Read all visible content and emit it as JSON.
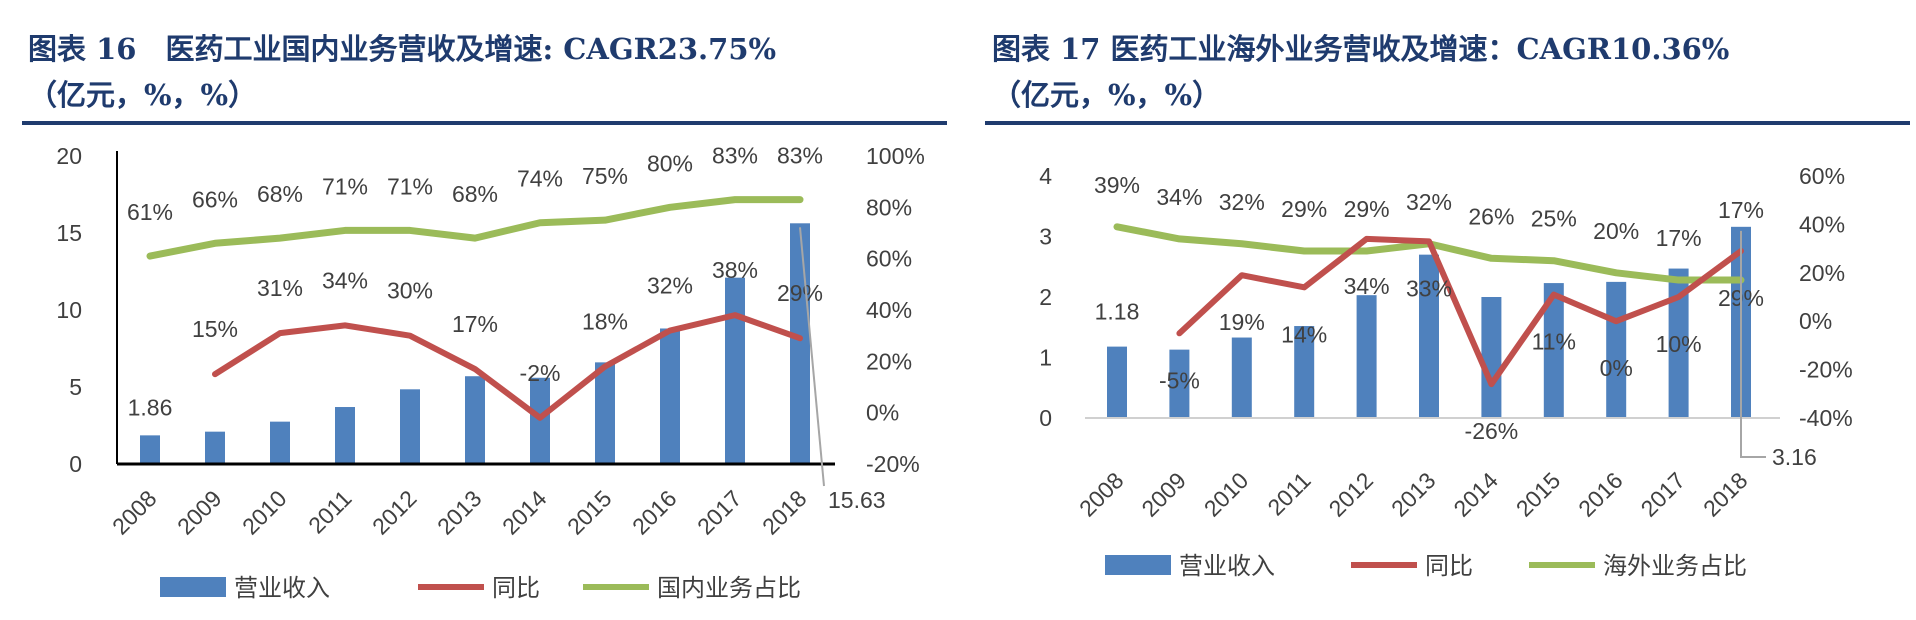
{
  "charts_header": [
    {
      "line1": "图表 16　医药工业国内业务营收及增速: CAGR23.75%",
      "line2": "（亿元，%，%）"
    },
    {
      "line1": "图表 17 医药工业海外业务营收及增速：CAGR10.36%",
      "line2": "（亿元，%，%）"
    }
  ],
  "colors": {
    "bar": "#4f81bd",
    "yoy": "#c0504d",
    "share": "#9bbb59",
    "title": "#1f3b6e"
  },
  "chart_data": [
    {
      "type": "bar+line",
      "title": "图表 16　医药工业国内业务营收及增速: CAGR23.75%",
      "categories": [
        "2008",
        "2009",
        "2010",
        "2011",
        "2012",
        "2013",
        "2014",
        "2015",
        "2016",
        "2017",
        "2018"
      ],
      "y_left": {
        "range": [
          0,
          20
        ],
        "ticks": [
          "0",
          "5",
          "10",
          "15",
          "20"
        ]
      },
      "y_right": {
        "range": [
          -20,
          100
        ],
        "ticks": [
          "-20%",
          "0%",
          "20%",
          "40%",
          "60%",
          "80%",
          "100%"
        ]
      },
      "series": [
        {
          "name": "营业收入",
          "type": "bar",
          "axis": "left",
          "values": [
            1.86,
            2.1,
            2.75,
            3.7,
            4.85,
            5.7,
            5.6,
            6.6,
            8.8,
            12.1,
            15.63
          ],
          "labels": [
            "1.86",
            "",
            "",
            "",
            "",
            "",
            "",
            "",
            "",
            "",
            "15.63"
          ]
        },
        {
          "name": "同比",
          "type": "line",
          "axis": "right",
          "values": [
            null,
            15,
            31,
            34,
            30,
            17,
            -2,
            18,
            32,
            38,
            29
          ],
          "labels": [
            "",
            "15%",
            "31%",
            "34%",
            "30%",
            "17%",
            "-2%",
            "18%",
            "32%",
            "38%",
            "29%"
          ]
        },
        {
          "name": "国内业务占比",
          "type": "line",
          "axis": "right",
          "values": [
            61,
            66,
            68,
            71,
            71,
            68,
            74,
            75,
            80,
            83,
            83
          ],
          "labels": [
            "61%",
            "66%",
            "68%",
            "71%",
            "71%",
            "68%",
            "74%",
            "75%",
            "80%",
            "83%",
            "83%"
          ]
        }
      ],
      "legend": "bottom"
    },
    {
      "type": "bar+line",
      "title": "图表 17 医药工业海外业务营收及增速：CAGR10.36%",
      "categories": [
        "2008",
        "2009",
        "2010",
        "2011",
        "2012",
        "2013",
        "2014",
        "2015",
        "2016",
        "2017",
        "2018"
      ],
      "y_left": {
        "range": [
          0,
          4
        ],
        "ticks": [
          "0",
          "1",
          "2",
          "3",
          "4"
        ]
      },
      "y_right": {
        "range": [
          -40,
          60
        ],
        "ticks": [
          "-40%",
          "-20%",
          "0%",
          "20%",
          "40%",
          "60%"
        ]
      },
      "series": [
        {
          "name": "营业收入",
          "type": "bar",
          "axis": "left",
          "values": [
            1.18,
            1.13,
            1.33,
            1.52,
            2.03,
            2.7,
            2.0,
            2.23,
            2.25,
            2.47,
            3.16
          ],
          "labels": [
            "1.18",
            "",
            "",
            "",
            "",
            "",
            "",
            "",
            "",
            "",
            "3.16"
          ]
        },
        {
          "name": "同比",
          "type": "line",
          "axis": "right",
          "values": [
            null,
            -5,
            19,
            14,
            34,
            33,
            -26,
            11,
            0,
            10,
            29
          ],
          "labels": [
            "",
            "-5%",
            "19%",
            "14%",
            "34%",
            "33%",
            "-26%",
            "11%",
            "0%",
            "10%",
            "29%"
          ]
        },
        {
          "name": "海外业务占比",
          "type": "line",
          "axis": "right",
          "values": [
            39,
            34,
            32,
            29,
            29,
            32,
            26,
            25,
            20,
            17,
            17
          ],
          "labels": [
            "39%",
            "34%",
            "32%",
            "29%",
            "29%",
            "32%",
            "26%",
            "25%",
            "20%",
            "17%",
            "17%"
          ]
        }
      ],
      "legend": "bottom"
    }
  ]
}
